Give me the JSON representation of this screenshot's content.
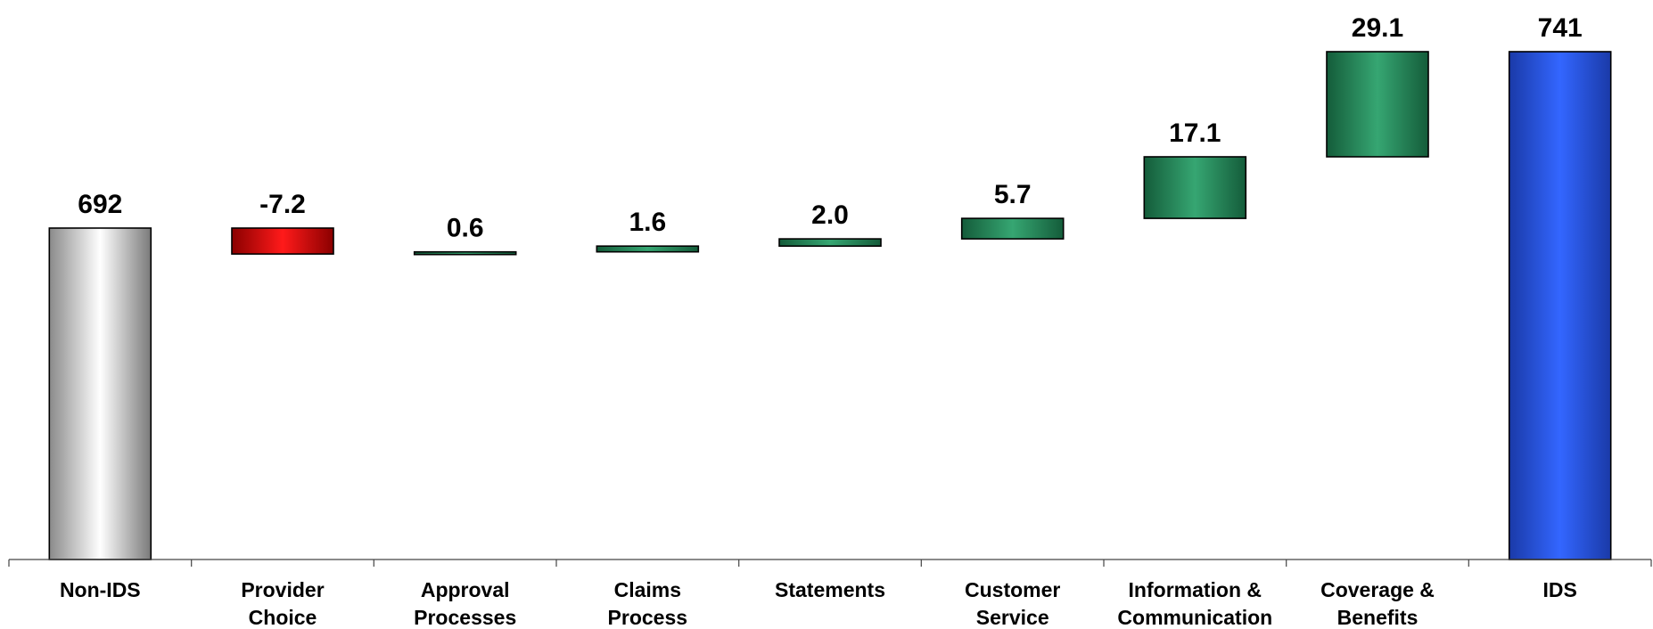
{
  "chart_data": {
    "type": "waterfall",
    "categories": [
      [
        "Non-IDS"
      ],
      [
        "Provider",
        "Choice"
      ],
      [
        "Approval",
        "Processes"
      ],
      [
        "Claims",
        "Process"
      ],
      [
        "Statements"
      ],
      [
        "Customer",
        "Service"
      ],
      [
        "Information &",
        "Communication"
      ],
      [
        "Coverage &",
        "Benefits"
      ],
      [
        "IDS"
      ]
    ],
    "bars": [
      {
        "kind": "total",
        "start": 0,
        "end": 692,
        "label": "692",
        "color": "grey"
      },
      {
        "kind": "delta",
        "start": 692,
        "end": 684.8,
        "label": "-7.2",
        "color": "red"
      },
      {
        "kind": "delta",
        "start": 684.8,
        "end": 685.4,
        "label": "0.6",
        "color": "green"
      },
      {
        "kind": "delta",
        "start": 685.4,
        "end": 687.0,
        "label": "1.6",
        "color": "green"
      },
      {
        "kind": "delta",
        "start": 687.0,
        "end": 689.0,
        "label": "2.0",
        "color": "green"
      },
      {
        "kind": "delta",
        "start": 689.0,
        "end": 694.7,
        "label": "5.7",
        "color": "green"
      },
      {
        "kind": "delta",
        "start": 694.7,
        "end": 711.8,
        "label": "17.1",
        "color": "green"
      },
      {
        "kind": "delta",
        "start": 711.8,
        "end": 741,
        "label": "29.1",
        "color": "green"
      },
      {
        "kind": "total",
        "start": 0,
        "end": 741,
        "label": "741",
        "color": "blue"
      }
    ],
    "colors": {
      "red": "#ff0000",
      "green": "#2e9a68",
      "blue": "#2f63ff",
      "grey": "#d0d0d0"
    },
    "ylim": [
      0,
      741
    ],
    "grid": false,
    "legend": "none"
  }
}
